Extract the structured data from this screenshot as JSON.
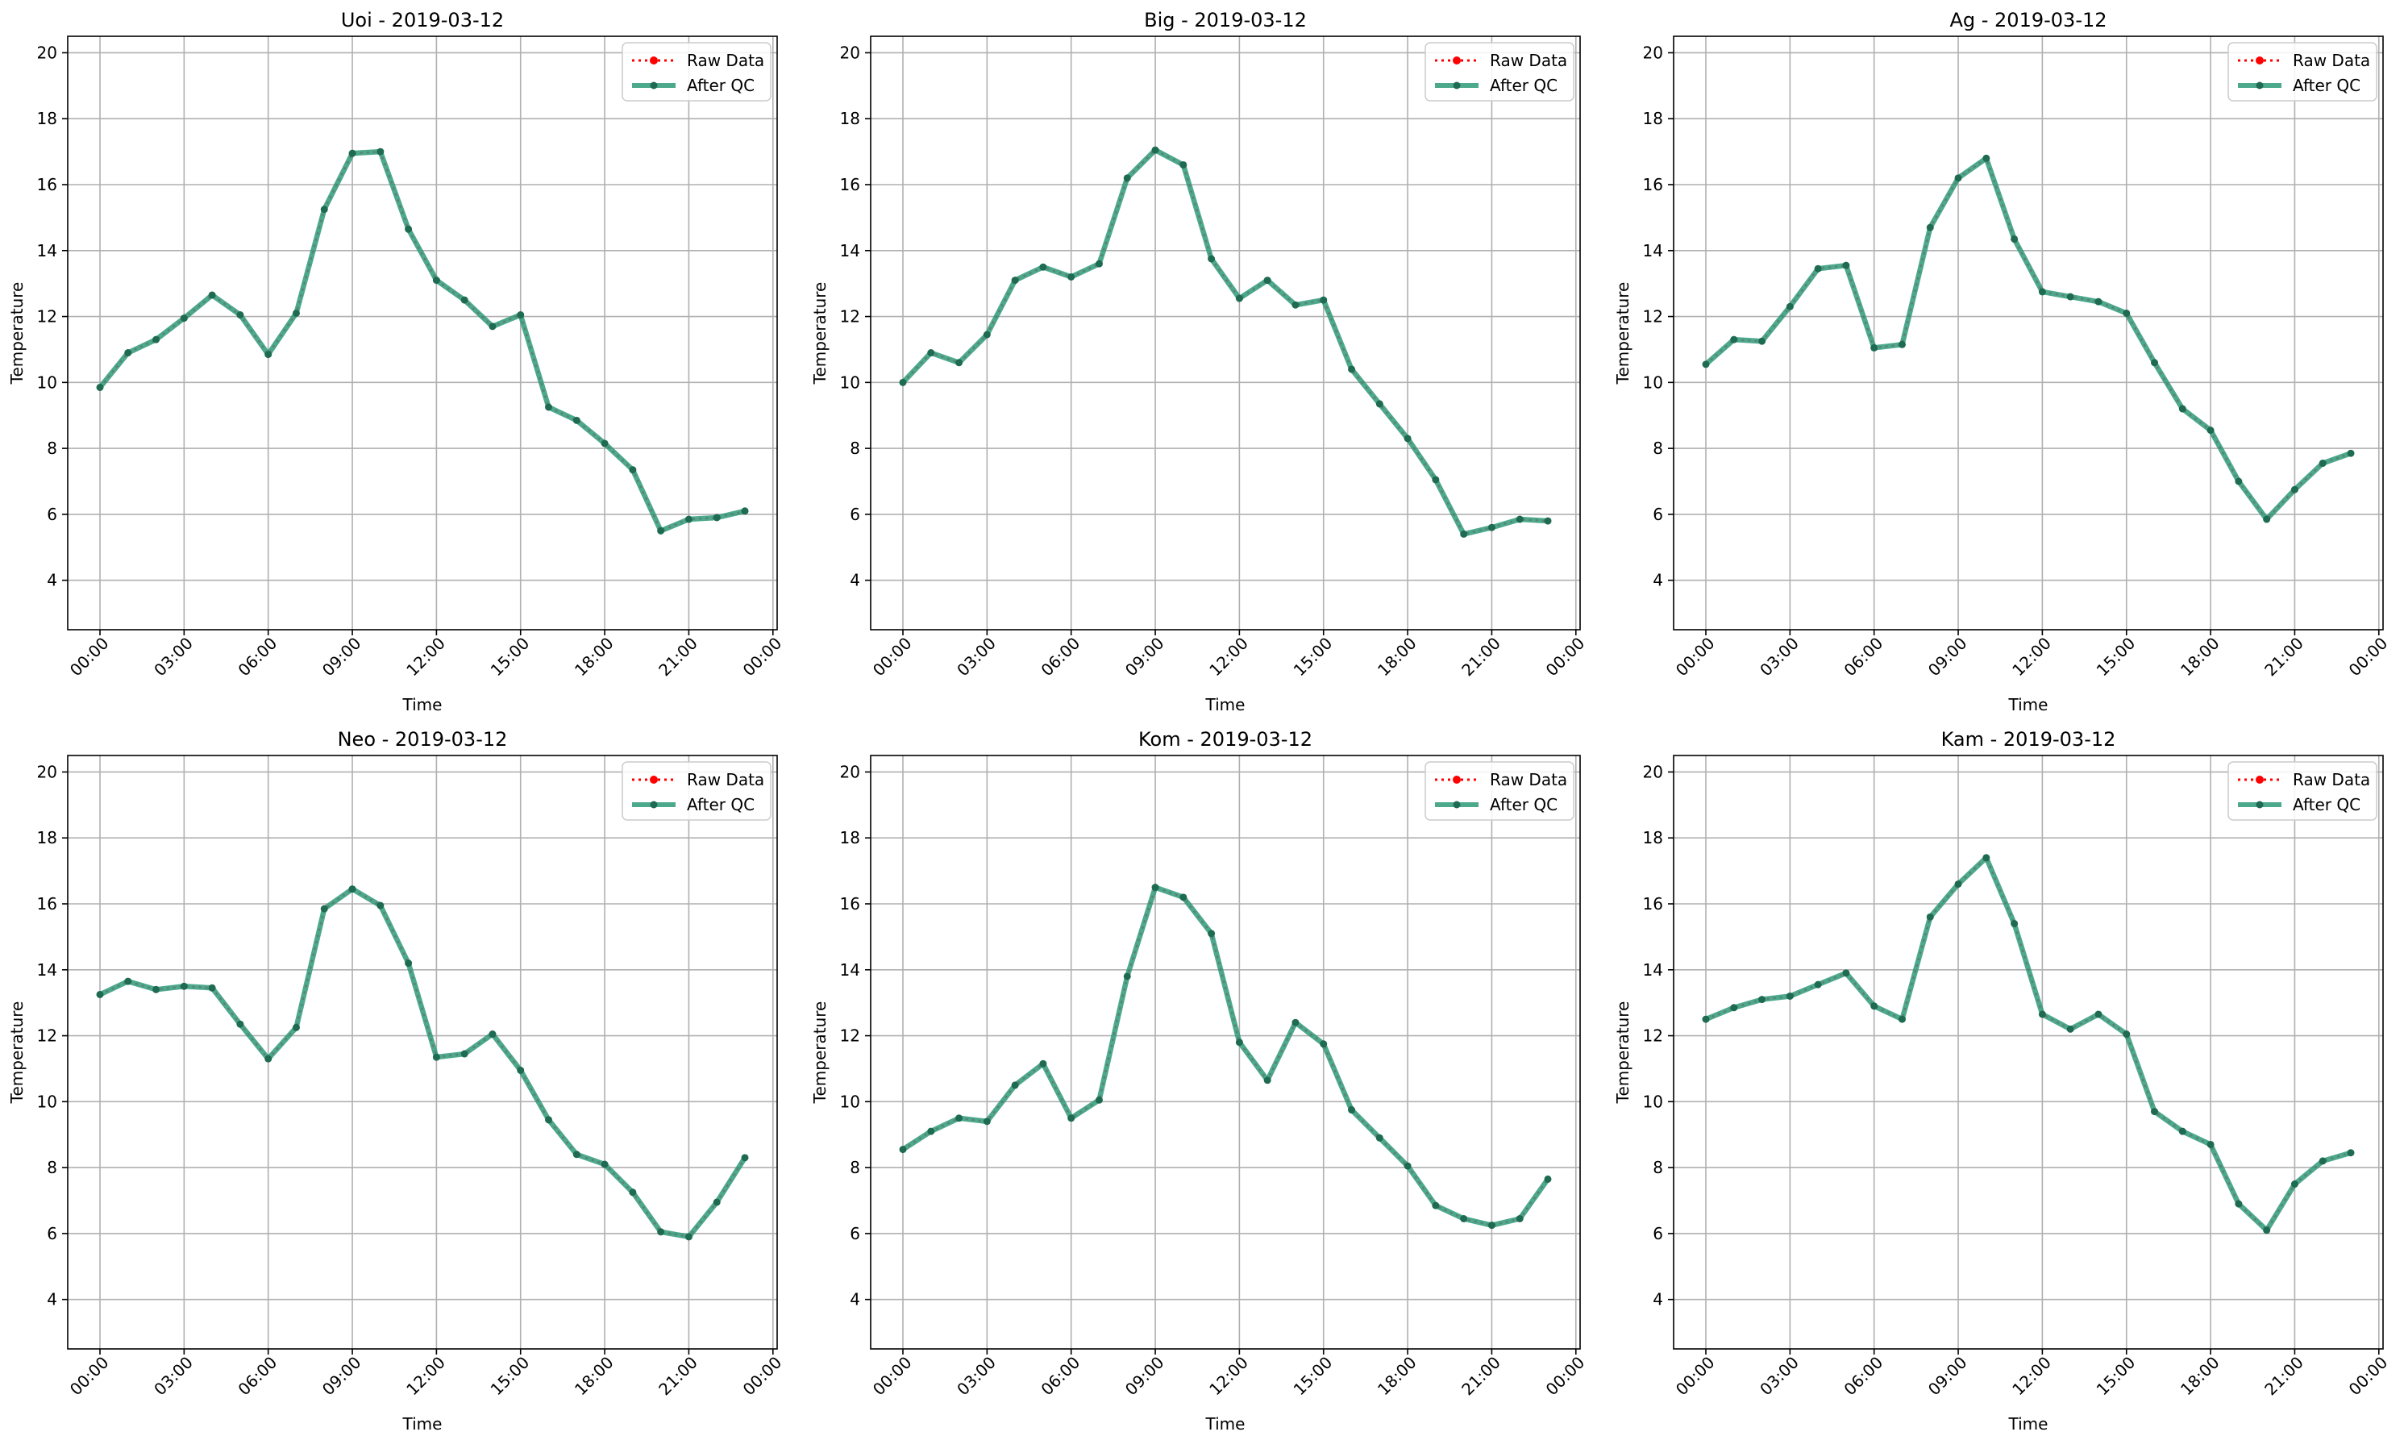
{
  "figure": {
    "legend_raw_label": "Raw Data",
    "legend_qc_label": "After QC",
    "xlabel": "Time",
    "ylabel": "Temperature"
  },
  "colors": {
    "raw": "#ff0000",
    "qc": "#2e9a78",
    "qc_marker": "#1f6b52",
    "grid": "#b0b0b0"
  },
  "chart_data": [
    {
      "type": "line",
      "title": "Uoi - 2019-03-12",
      "xlabel": "Time",
      "ylabel": "Temperature",
      "x": [
        "00:00",
        "01:00",
        "02:00",
        "03:00",
        "04:00",
        "05:00",
        "06:00",
        "07:00",
        "08:00",
        "09:00",
        "10:00",
        "11:00",
        "12:00",
        "13:00",
        "14:00",
        "15:00",
        "16:00",
        "17:00",
        "18:00",
        "19:00",
        "20:00",
        "21:00",
        "22:00",
        "23:00"
      ],
      "series": [
        {
          "name": "Raw Data",
          "values": [
            9.85,
            10.9,
            11.3,
            11.95,
            12.65,
            12.05,
            10.85,
            12.1,
            15.25,
            16.95,
            17.0,
            14.65,
            13.1,
            12.5,
            11.7,
            12.05,
            9.25,
            8.85,
            8.15,
            7.35,
            5.5,
            5.85,
            5.9,
            6.1
          ]
        },
        {
          "name": "After QC",
          "values": [
            9.85,
            10.9,
            11.3,
            11.95,
            12.65,
            12.05,
            10.85,
            12.1,
            15.25,
            16.95,
            17.0,
            14.65,
            13.1,
            12.5,
            11.7,
            12.05,
            9.25,
            8.85,
            8.15,
            7.35,
            5.5,
            5.85,
            5.9,
            6.1
          ]
        }
      ],
      "ylim": [
        2.5,
        20.5
      ],
      "yticks": [
        4,
        6,
        8,
        10,
        12,
        14,
        16,
        18,
        20
      ],
      "xticks": [
        "00:00",
        "03:00",
        "06:00",
        "09:00",
        "12:00",
        "15:00",
        "18:00",
        "21:00",
        "00:00"
      ],
      "grid": true,
      "legend": "top-right"
    },
    {
      "type": "line",
      "title": "Big - 2019-03-12",
      "xlabel": "Time",
      "ylabel": "Temperature",
      "x": [
        "00:00",
        "01:00",
        "02:00",
        "03:00",
        "04:00",
        "05:00",
        "06:00",
        "07:00",
        "08:00",
        "09:00",
        "10:00",
        "11:00",
        "12:00",
        "13:00",
        "14:00",
        "15:00",
        "16:00",
        "17:00",
        "18:00",
        "19:00",
        "20:00",
        "21:00",
        "22:00",
        "23:00"
      ],
      "series": [
        {
          "name": "Raw Data",
          "values": [
            10.0,
            10.9,
            10.6,
            11.45,
            13.1,
            13.5,
            13.2,
            13.6,
            16.2,
            17.05,
            16.6,
            13.75,
            12.55,
            13.1,
            12.35,
            12.5,
            10.4,
            9.35,
            8.3,
            7.05,
            5.4,
            5.6,
            5.85,
            5.8
          ]
        },
        {
          "name": "After QC",
          "values": [
            10.0,
            10.9,
            10.6,
            11.45,
            13.1,
            13.5,
            13.2,
            13.6,
            16.2,
            17.05,
            16.6,
            13.75,
            12.55,
            13.1,
            12.35,
            12.5,
            10.4,
            9.35,
            8.3,
            7.05,
            5.4,
            5.6,
            5.85,
            5.8
          ]
        }
      ],
      "ylim": [
        2.5,
        20.5
      ],
      "yticks": [
        4,
        6,
        8,
        10,
        12,
        14,
        16,
        18,
        20
      ],
      "xticks": [
        "00:00",
        "03:00",
        "06:00",
        "09:00",
        "12:00",
        "15:00",
        "18:00",
        "21:00",
        "00:00"
      ],
      "grid": true,
      "legend": "top-right"
    },
    {
      "type": "line",
      "title": "Ag - 2019-03-12",
      "xlabel": "Time",
      "ylabel": "Temperature",
      "x": [
        "00:00",
        "01:00",
        "02:00",
        "03:00",
        "04:00",
        "05:00",
        "06:00",
        "07:00",
        "08:00",
        "09:00",
        "10:00",
        "11:00",
        "12:00",
        "13:00",
        "14:00",
        "15:00",
        "16:00",
        "17:00",
        "18:00",
        "19:00",
        "20:00",
        "21:00",
        "22:00",
        "23:00"
      ],
      "series": [
        {
          "name": "Raw Data",
          "values": [
            10.55,
            11.3,
            11.25,
            12.3,
            13.45,
            13.55,
            11.05,
            11.15,
            14.7,
            16.2,
            16.8,
            14.35,
            12.75,
            12.6,
            12.45,
            12.1,
            10.6,
            9.2,
            8.55,
            7.0,
            5.85,
            6.75,
            7.55,
            7.85
          ]
        },
        {
          "name": "After QC",
          "values": [
            10.55,
            11.3,
            11.25,
            12.3,
            13.45,
            13.55,
            11.05,
            11.15,
            14.7,
            16.2,
            16.8,
            14.35,
            12.75,
            12.6,
            12.45,
            12.1,
            10.6,
            9.2,
            8.55,
            7.0,
            5.85,
            6.75,
            7.55,
            7.85
          ]
        }
      ],
      "ylim": [
        2.5,
        20.5
      ],
      "yticks": [
        4,
        6,
        8,
        10,
        12,
        14,
        16,
        18,
        20
      ],
      "xticks": [
        "00:00",
        "03:00",
        "06:00",
        "09:00",
        "12:00",
        "15:00",
        "18:00",
        "21:00",
        "00:00"
      ],
      "grid": true,
      "legend": "top-right"
    },
    {
      "type": "line",
      "title": "Neo - 2019-03-12",
      "xlabel": "Time",
      "ylabel": "Temperature",
      "x": [
        "00:00",
        "01:00",
        "02:00",
        "03:00",
        "04:00",
        "05:00",
        "06:00",
        "07:00",
        "08:00",
        "09:00",
        "10:00",
        "11:00",
        "12:00",
        "13:00",
        "14:00",
        "15:00",
        "16:00",
        "17:00",
        "18:00",
        "19:00",
        "20:00",
        "21:00",
        "22:00",
        "23:00"
      ],
      "series": [
        {
          "name": "Raw Data",
          "values": [
            13.25,
            13.65,
            13.4,
            13.5,
            13.45,
            12.35,
            11.3,
            12.25,
            15.85,
            16.45,
            15.95,
            14.2,
            11.35,
            11.45,
            12.05,
            10.95,
            9.45,
            8.4,
            8.1,
            7.25,
            6.05,
            5.9,
            6.95,
            8.3
          ]
        },
        {
          "name": "After QC",
          "values": [
            13.25,
            13.65,
            13.4,
            13.5,
            13.45,
            12.35,
            11.3,
            12.25,
            15.85,
            16.45,
            15.95,
            14.2,
            11.35,
            11.45,
            12.05,
            10.95,
            9.45,
            8.4,
            8.1,
            7.25,
            6.05,
            5.9,
            6.95,
            8.3
          ]
        }
      ],
      "ylim": [
        2.5,
        20.5
      ],
      "yticks": [
        4,
        6,
        8,
        10,
        12,
        14,
        16,
        18,
        20
      ],
      "xticks": [
        "00:00",
        "03:00",
        "06:00",
        "09:00",
        "12:00",
        "15:00",
        "18:00",
        "21:00",
        "00:00"
      ],
      "grid": true,
      "legend": "top-right"
    },
    {
      "type": "line",
      "title": "Kom - 2019-03-12",
      "xlabel": "Time",
      "ylabel": "Temperature",
      "x": [
        "00:00",
        "01:00",
        "02:00",
        "03:00",
        "04:00",
        "05:00",
        "06:00",
        "07:00",
        "08:00",
        "09:00",
        "10:00",
        "11:00",
        "12:00",
        "13:00",
        "14:00",
        "15:00",
        "16:00",
        "17:00",
        "18:00",
        "19:00",
        "20:00",
        "21:00",
        "22:00",
        "23:00"
      ],
      "series": [
        {
          "name": "Raw Data",
          "values": [
            8.55,
            9.1,
            9.5,
            9.4,
            10.5,
            11.15,
            9.5,
            10.05,
            13.8,
            16.5,
            16.2,
            15.1,
            11.8,
            10.65,
            12.4,
            11.75,
            9.75,
            8.9,
            8.05,
            6.85,
            6.45,
            6.25,
            6.45,
            7.65
          ]
        },
        {
          "name": "After QC",
          "values": [
            8.55,
            9.1,
            9.5,
            9.4,
            10.5,
            11.15,
            9.5,
            10.05,
            13.8,
            16.5,
            16.2,
            15.1,
            11.8,
            10.65,
            12.4,
            11.75,
            9.75,
            8.9,
            8.05,
            6.85,
            6.45,
            6.25,
            6.45,
            7.65
          ]
        }
      ],
      "ylim": [
        2.5,
        20.5
      ],
      "yticks": [
        4,
        6,
        8,
        10,
        12,
        14,
        16,
        18,
        20
      ],
      "xticks": [
        "00:00",
        "03:00",
        "06:00",
        "09:00",
        "12:00",
        "15:00",
        "18:00",
        "21:00",
        "00:00"
      ],
      "grid": true,
      "legend": "top-right"
    },
    {
      "type": "line",
      "title": "Kam - 2019-03-12",
      "xlabel": "Time",
      "ylabel": "Temperature",
      "x": [
        "00:00",
        "01:00",
        "02:00",
        "03:00",
        "04:00",
        "05:00",
        "06:00",
        "07:00",
        "08:00",
        "09:00",
        "10:00",
        "11:00",
        "12:00",
        "13:00",
        "14:00",
        "15:00",
        "16:00",
        "17:00",
        "18:00",
        "19:00",
        "20:00",
        "21:00",
        "22:00",
        "23:00"
      ],
      "series": [
        {
          "name": "Raw Data",
          "values": [
            12.5,
            12.85,
            13.1,
            13.2,
            13.55,
            13.9,
            12.9,
            12.5,
            15.6,
            16.6,
            17.4,
            15.4,
            12.65,
            12.2,
            12.65,
            12.05,
            9.7,
            9.1,
            8.7,
            6.9,
            6.1,
            7.5,
            8.2,
            8.45
          ]
        },
        {
          "name": "After QC",
          "values": [
            12.5,
            12.85,
            13.1,
            13.2,
            13.55,
            13.9,
            12.9,
            12.5,
            15.6,
            16.6,
            17.4,
            15.4,
            12.65,
            12.2,
            12.65,
            12.05,
            9.7,
            9.1,
            8.7,
            6.9,
            6.1,
            7.5,
            8.2,
            8.45
          ]
        }
      ],
      "ylim": [
        2.5,
        20.5
      ],
      "yticks": [
        4,
        6,
        8,
        10,
        12,
        14,
        16,
        18,
        20
      ],
      "xticks": [
        "00:00",
        "03:00",
        "06:00",
        "09:00",
        "12:00",
        "15:00",
        "18:00",
        "21:00",
        "00:00"
      ],
      "grid": true,
      "legend": "top-right"
    }
  ]
}
